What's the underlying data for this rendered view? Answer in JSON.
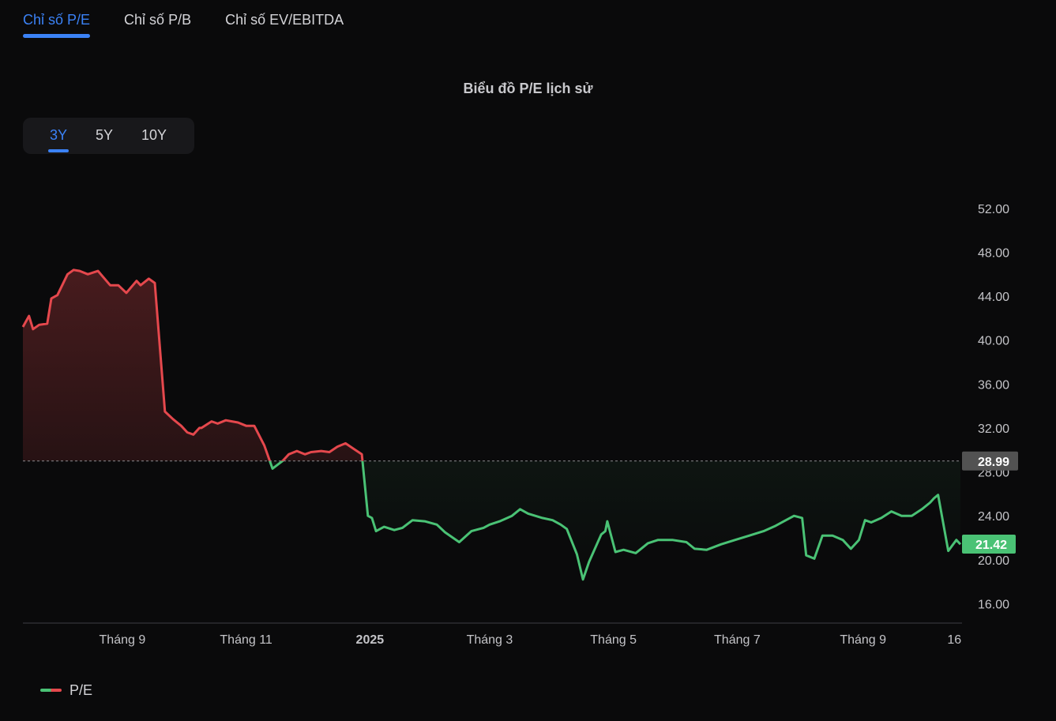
{
  "tabs": [
    {
      "label": "Chỉ số P/E",
      "active": true
    },
    {
      "label": "Chỉ số P/B",
      "active": false
    },
    {
      "label": "Chỉ số EV/EBITDA",
      "active": false
    }
  ],
  "ranges": [
    {
      "label": "3Y",
      "active": true
    },
    {
      "label": "5Y",
      "active": false
    },
    {
      "label": "10Y",
      "active": false
    }
  ],
  "legend": {
    "label": "P/E"
  },
  "colors": {
    "above": "#e5484d",
    "below": "#4ac275",
    "accent": "#3b82f6",
    "reference_badge": "#525252"
  },
  "chart_data": {
    "type": "line",
    "title": "Biểu đồ P/E lịch sử",
    "series": [
      {
        "name": "P/E"
      }
    ],
    "reference_value": 28.99,
    "reference_label": "28.99",
    "last_value": 21.42,
    "last_label": "21.42",
    "y_ticks": [
      "16.00",
      "20.00",
      "24.00",
      "28.00",
      "32.00",
      "36.00",
      "40.00",
      "44.00",
      "48.00",
      "52.00"
    ],
    "ylim": [
      14.3,
      53.0
    ],
    "x_ticks": [
      {
        "label": "Tháng 9",
        "date": "2024-09-01",
        "bold": false
      },
      {
        "label": "Tháng 11",
        "date": "2024-11-01",
        "bold": false
      },
      {
        "label": "2025",
        "date": "2025-01-01",
        "bold": true
      },
      {
        "label": "Tháng 3",
        "date": "2025-03-01",
        "bold": false
      },
      {
        "label": "Tháng 5",
        "date": "2025-05-01",
        "bold": false
      },
      {
        "label": "Tháng 7",
        "date": "2025-07-01",
        "bold": false
      },
      {
        "label": "Tháng 9",
        "date": "2025-09-01",
        "bold": false
      },
      {
        "label": "16",
        "date": "2025-10-16",
        "bold": false
      }
    ],
    "x": [
      "2024-07-14",
      "2024-07-17",
      "2024-07-19",
      "2024-07-22",
      "2024-07-26",
      "2024-07-28",
      "2024-07-31",
      "2024-08-05",
      "2024-08-08",
      "2024-08-11",
      "2024-08-15",
      "2024-08-20",
      "2024-08-26",
      "2024-08-30",
      "2024-09-03",
      "2024-09-08",
      "2024-09-10",
      "2024-09-14",
      "2024-09-17",
      "2024-09-22",
      "2024-09-26",
      "2024-09-30",
      "2024-10-03",
      "2024-10-06",
      "2024-10-09",
      "2024-10-10",
      "2024-10-15",
      "2024-10-18",
      "2024-10-22",
      "2024-10-25",
      "2024-10-28",
      "2024-11-01",
      "2024-11-05",
      "2024-11-10",
      "2024-11-14",
      "2024-11-19",
      "2024-11-22",
      "2024-11-26",
      "2024-11-30",
      "2024-12-03",
      "2024-12-08",
      "2024-12-12",
      "2024-12-16",
      "2024-12-20",
      "2024-12-24",
      "2024-12-28",
      "2024-12-31",
      "2025-01-02",
      "2025-01-04",
      "2025-01-08",
      "2025-01-13",
      "2025-01-17",
      "2025-01-22",
      "2025-01-28",
      "2025-02-03",
      "2025-02-07",
      "2025-02-14",
      "2025-02-20",
      "2025-02-26",
      "2025-03-01",
      "2025-03-06",
      "2025-03-12",
      "2025-03-16",
      "2025-03-20",
      "2025-03-27",
      "2025-04-01",
      "2025-04-05",
      "2025-04-08",
      "2025-04-13",
      "2025-04-16",
      "2025-04-19",
      "2025-04-25",
      "2025-04-27",
      "2025-04-28",
      "2025-05-02",
      "2025-05-06",
      "2025-05-12",
      "2025-05-18",
      "2025-05-23",
      "2025-05-30",
      "2025-06-06",
      "2025-06-10",
      "2025-06-16",
      "2025-06-23",
      "2025-06-30",
      "2025-07-07",
      "2025-07-14",
      "2025-07-20",
      "2025-07-24",
      "2025-07-29",
      "2025-08-02",
      "2025-08-04",
      "2025-08-08",
      "2025-08-12",
      "2025-08-17",
      "2025-08-22",
      "2025-08-26",
      "2025-08-30",
      "2025-09-02",
      "2025-09-05",
      "2025-09-10",
      "2025-09-15",
      "2025-09-20",
      "2025-09-25",
      "2025-09-30",
      "2025-10-04",
      "2025-10-06",
      "2025-10-08",
      "2025-10-13",
      "2025-10-17",
      "2025-10-19"
    ],
    "values": [
      41.2,
      42.2,
      41.0,
      41.4,
      41.5,
      43.8,
      44.1,
      46.0,
      46.4,
      46.3,
      46.0,
      46.3,
      45.0,
      45.0,
      44.3,
      45.4,
      45.0,
      45.6,
      45.2,
      33.5,
      32.8,
      32.2,
      31.6,
      31.4,
      32.0,
      32.0,
      32.6,
      32.4,
      32.7,
      32.6,
      32.5,
      32.2,
      32.2,
      30.4,
      28.3,
      29.0,
      29.6,
      29.9,
      29.6,
      29.8,
      29.9,
      29.8,
      30.3,
      30.6,
      30.1,
      29.6,
      24.0,
      23.8,
      22.6,
      23.0,
      22.7,
      22.9,
      23.6,
      23.5,
      23.2,
      22.5,
      21.6,
      22.6,
      22.9,
      23.2,
      23.5,
      24.0,
      24.6,
      24.2,
      23.8,
      23.6,
      23.2,
      22.8,
      20.5,
      18.2,
      19.8,
      22.3,
      22.6,
      23.5,
      20.7,
      20.9,
      20.6,
      21.5,
      21.8,
      21.8,
      21.6,
      21.0,
      20.9,
      21.4,
      21.8,
      22.2,
      22.6,
      23.1,
      23.5,
      24.0,
      23.8,
      20.4,
      20.1,
      22.2,
      22.2,
      21.8,
      21.0,
      21.8,
      23.6,
      23.4,
      23.8,
      24.4,
      24.0,
      24.0,
      24.6,
      25.2,
      25.6,
      25.9,
      20.8,
      21.8,
      21.4
    ]
  }
}
